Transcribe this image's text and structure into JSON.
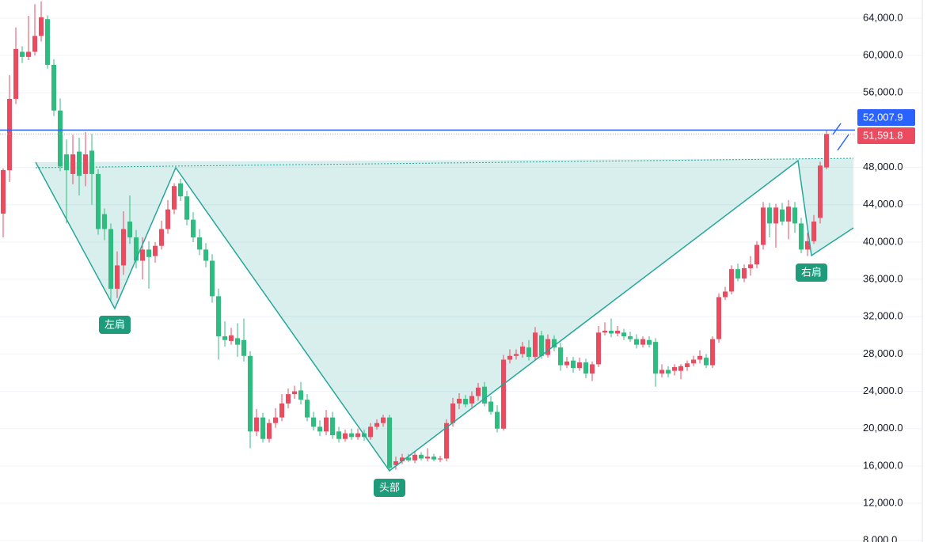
{
  "chart_data": {
    "type": "candlestick",
    "up_color": "#ec4a5f",
    "down_color": "#2ebd7e",
    "ylim": [
      7850,
      65950
    ],
    "yticks": [
      {
        "value": 8000,
        "label": "8,000.0"
      },
      {
        "value": 12000,
        "label": "12,000.0"
      },
      {
        "value": 16000,
        "label": "16,000.0"
      },
      {
        "value": 20000,
        "label": "20,000.0"
      },
      {
        "value": 24000,
        "label": "24,000.0"
      },
      {
        "value": 28000,
        "label": "28,000.0"
      },
      {
        "value": 32000,
        "label": "32,000.0"
      },
      {
        "value": 36000,
        "label": "36,000.0"
      },
      {
        "value": 40000,
        "label": "40,000.0"
      },
      {
        "value": 44000,
        "label": "44,000.0"
      },
      {
        "value": 48000,
        "label": "48,000.0"
      },
      {
        "value": 56000,
        "label": "56,000.0"
      },
      {
        "value": 60000,
        "label": "60,000.0"
      },
      {
        "value": 64000,
        "label": "64,000.0"
      }
    ],
    "grid": true,
    "price_lines": [
      {
        "value": 52007.9,
        "label": "52,007.9",
        "color": "#2962ff",
        "style": "solid"
      },
      {
        "value": 51591.8,
        "label": "51,591.8",
        "color": "#ec4a5f",
        "style": "dotted"
      }
    ],
    "annotations": [
      "左肩",
      "头部",
      "右肩"
    ],
    "candles": [
      [
        43050,
        47900,
        40500,
        47720
      ],
      [
        47700,
        57900,
        46450,
        55350
      ],
      [
        55350,
        63000,
        54800,
        60700
      ],
      [
        60400,
        61000,
        59200,
        59850
      ],
      [
        59850,
        64250,
        59500,
        60400
      ],
      [
        60400,
        65500,
        60000,
        62100
      ],
      [
        62100,
        65800,
        61500,
        64100
      ],
      [
        63900,
        64300,
        58600,
        59000
      ],
      [
        59000,
        59600,
        53500,
        54100
      ],
      [
        54100,
        55400,
        47600,
        48100
      ],
      [
        49400,
        51000,
        42000,
        47700
      ],
      [
        47300,
        51500,
        46200,
        49400
      ],
      [
        49700,
        51200,
        45000,
        47100
      ],
      [
        47300,
        51800,
        46000,
        49400
      ],
      [
        49800,
        51600,
        44000,
        47300
      ],
      [
        47300,
        47800,
        40800,
        41400
      ],
      [
        43000,
        43600,
        40200,
        41400
      ],
      [
        41400,
        42000,
        33800,
        35000
      ],
      [
        35000,
        39000,
        34000,
        37500
      ],
      [
        37500,
        43300,
        36500,
        41400
      ],
      [
        42200,
        45000,
        39800,
        40500
      ],
      [
        40500,
        41300,
        37200,
        38000
      ],
      [
        38000,
        40500,
        36000,
        39200
      ],
      [
        39200,
        40100,
        35000,
        38400
      ],
      [
        38500,
        40000,
        37800,
        39600
      ],
      [
        39600,
        42300,
        39200,
        41400
      ],
      [
        41400,
        44500,
        40900,
        43500
      ],
      [
        43500,
        46300,
        43000,
        46000
      ],
      [
        46300,
        46800,
        44400,
        44900
      ],
      [
        44900,
        45500,
        41800,
        42400
      ],
      [
        42400,
        43200,
        40000,
        40500
      ],
      [
        40500,
        41400,
        38600,
        39200
      ],
      [
        39200,
        39900,
        37300,
        38000
      ],
      [
        38000,
        38700,
        33500,
        34200
      ],
      [
        34200,
        35000,
        27400,
        29900
      ],
      [
        29900,
        31500,
        28800,
        29500
      ],
      [
        29400,
        30800,
        29000,
        30000
      ],
      [
        29700,
        31300,
        27700,
        29000
      ],
      [
        29500,
        31800,
        27200,
        27800
      ],
      [
        27800,
        28300,
        17900,
        19700
      ],
      [
        19700,
        22100,
        19200,
        21200
      ],
      [
        21200,
        21700,
        18500,
        18900
      ],
      [
        18900,
        21000,
        18500,
        20600
      ],
      [
        20600,
        22200,
        20100,
        21200
      ],
      [
        21200,
        23700,
        20800,
        22700
      ],
      [
        22700,
        24300,
        22200,
        23700
      ],
      [
        23700,
        24600,
        23200,
        24000
      ],
      [
        24100,
        25000,
        22600,
        23100
      ],
      [
        23100,
        23700,
        20800,
        21200
      ],
      [
        21200,
        21800,
        19800,
        20200
      ],
      [
        20200,
        20900,
        19200,
        19700
      ],
      [
        19700,
        22000,
        19300,
        21200
      ],
      [
        21200,
        21800,
        18900,
        19300
      ],
      [
        19700,
        20200,
        18500,
        18900
      ],
      [
        18900,
        19900,
        18600,
        19500
      ],
      [
        19500,
        20000,
        18800,
        19100
      ],
      [
        19100,
        20000,
        18800,
        19500
      ],
      [
        19500,
        19900,
        18700,
        19100
      ],
      [
        19100,
        20600,
        18800,
        20200
      ],
      [
        20200,
        21000,
        19900,
        20600
      ],
      [
        20600,
        21500,
        20200,
        21200
      ],
      [
        21200,
        21500,
        15500,
        15800
      ],
      [
        16100,
        17000,
        15600,
        16500
      ],
      [
        16500,
        17300,
        16200,
        16900
      ],
      [
        16900,
        17300,
        16400,
        16600
      ],
      [
        16600,
        17500,
        16300,
        17200
      ],
      [
        17200,
        17500,
        16600,
        16800
      ],
      [
        16800,
        17900,
        16500,
        17000
      ],
      [
        17000,
        17300,
        16500,
        16700
      ],
      [
        16700,
        17100,
        16400,
        16800
      ],
      [
        16800,
        21000,
        16500,
        20600
      ],
      [
        20600,
        23300,
        20200,
        22700
      ],
      [
        22700,
        23800,
        22100,
        23200
      ],
      [
        23200,
        23600,
        22300,
        22600
      ],
      [
        22700,
        24000,
        22300,
        23500
      ],
      [
        23500,
        24900,
        23000,
        24400
      ],
      [
        24500,
        25000,
        22400,
        22700
      ],
      [
        22900,
        23500,
        21500,
        21800
      ],
      [
        21800,
        22500,
        19600,
        20000
      ],
      [
        20000,
        27900,
        19800,
        27400
      ],
      [
        27400,
        28500,
        27000,
        27800
      ],
      [
        27800,
        28500,
        27400,
        28000
      ],
      [
        28000,
        29300,
        27600,
        28800
      ],
      [
        28700,
        29500,
        27300,
        27700
      ],
      [
        27700,
        30900,
        27400,
        30300
      ],
      [
        30000,
        30500,
        27500,
        27800
      ],
      [
        27900,
        30100,
        27600,
        29600
      ],
      [
        29600,
        30000,
        28300,
        28700
      ],
      [
        28700,
        29200,
        26200,
        26800
      ],
      [
        26800,
        27700,
        26500,
        27200
      ],
      [
        27300,
        27700,
        26000,
        26500
      ],
      [
        26500,
        27600,
        26200,
        27100
      ],
      [
        27100,
        27500,
        25400,
        25900
      ],
      [
        25900,
        27200,
        25100,
        26900
      ],
      [
        26900,
        31000,
        26600,
        30300
      ],
      [
        30300,
        31400,
        30000,
        30500
      ],
      [
        30500,
        31800,
        29800,
        30200
      ],
      [
        30200,
        31000,
        29900,
        30500
      ],
      [
        30300,
        30700,
        29500,
        29900
      ],
      [
        29900,
        30400,
        29300,
        29600
      ],
      [
        29600,
        30100,
        28600,
        29000
      ],
      [
        29000,
        29900,
        28700,
        29600
      ],
      [
        29500,
        29900,
        28700,
        29000
      ],
      [
        29300,
        29700,
        24500,
        25900
      ],
      [
        25900,
        26900,
        25500,
        26300
      ],
      [
        26300,
        26700,
        25500,
        25900
      ],
      [
        26200,
        26900,
        25700,
        26600
      ],
      [
        26200,
        26900,
        25300,
        26700
      ],
      [
        26600,
        27300,
        26200,
        27000
      ],
      [
        27000,
        27800,
        26700,
        27400
      ],
      [
        27400,
        28400,
        27000,
        27800
      ],
      [
        27600,
        28000,
        26500,
        26800
      ],
      [
        26800,
        29900,
        26500,
        29600
      ],
      [
        29600,
        34500,
        29200,
        34100
      ],
      [
        34100,
        35200,
        33800,
        34700
      ],
      [
        34700,
        37500,
        34400,
        37100
      ],
      [
        37100,
        37700,
        35800,
        36100
      ],
      [
        36100,
        37600,
        35700,
        37200
      ],
      [
        37200,
        38500,
        36400,
        37600
      ],
      [
        37600,
        40100,
        37200,
        39700
      ],
      [
        39700,
        44300,
        39200,
        43700
      ],
      [
        43700,
        44200,
        40500,
        42000
      ],
      [
        42000,
        44100,
        39400,
        43700
      ],
      [
        43500,
        44200,
        41800,
        42200
      ],
      [
        42200,
        44500,
        40300,
        43800
      ],
      [
        43700,
        44300,
        41000,
        42000
      ],
      [
        42000,
        42600,
        38800,
        39200
      ],
      [
        39200,
        41000,
        38500,
        40100
      ],
      [
        40100,
        42900,
        39800,
        42200
      ],
      [
        42600,
        48600,
        42000,
        48200
      ],
      [
        48000,
        52000,
        47800,
        51591.8
      ]
    ]
  }
}
